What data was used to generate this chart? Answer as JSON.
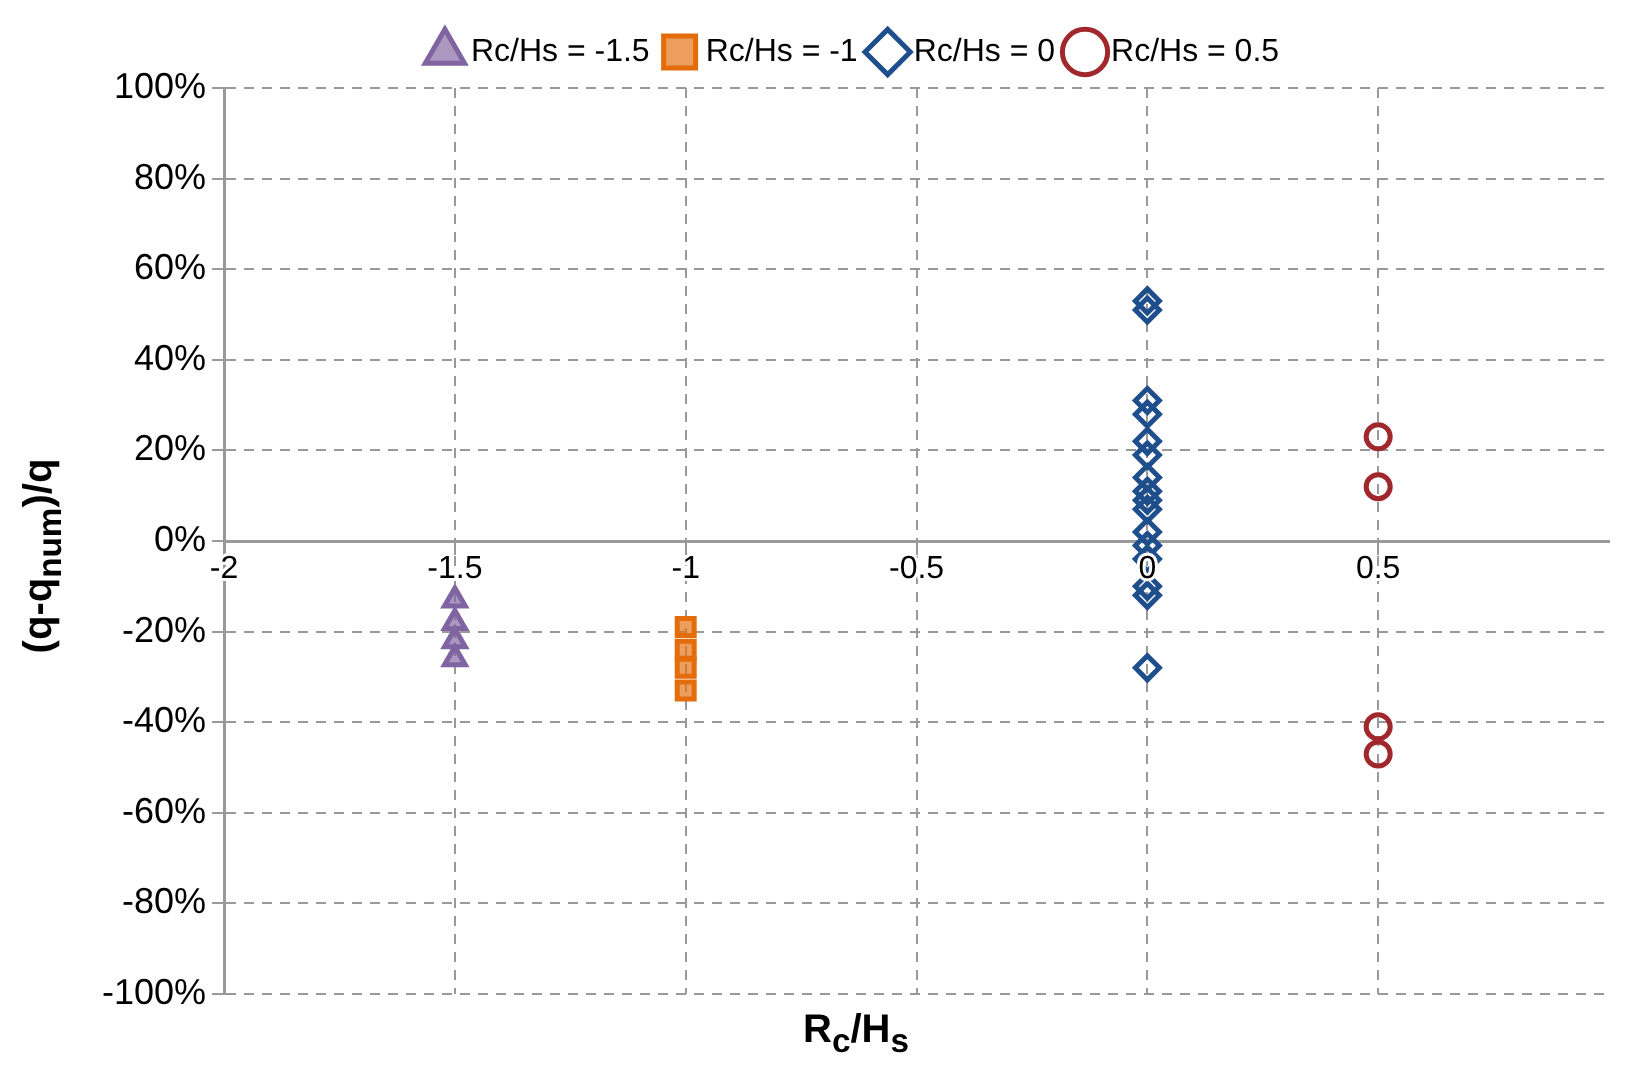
{
  "chart_data": {
    "type": "scatter",
    "xlabel": "R$_{c}$/H$_{s}$",
    "ylabel": "(q-q$_{num}$)/q",
    "xlim": [
      -2,
      1
    ],
    "xticks": [
      -2,
      -1.5,
      -1,
      -0.5,
      0,
      0.5
    ],
    "ylim": [
      -100,
      100
    ],
    "yticks": [
      {
        "value": -100,
        "label": "-100%"
      },
      {
        "value": -80,
        "label": "-80%"
      },
      {
        "value": -60,
        "label": "-60%"
      },
      {
        "value": -40,
        "label": "-40%"
      },
      {
        "value": -20,
        "label": "-20%"
      },
      {
        "value": 0,
        "label": "0%"
      },
      {
        "value": 20,
        "label": "20%"
      },
      {
        "value": 40,
        "label": "40%"
      },
      {
        "value": 60,
        "label": "60%"
      },
      {
        "value": 80,
        "label": "80%"
      },
      {
        "value": 100,
        "label": "100%"
      }
    ],
    "grid": true,
    "legend": "top",
    "series": [
      {
        "name": "Rc/Hs = -1.5",
        "color": "#8064a2",
        "marker": "triangle",
        "x": [
          -1.5,
          -1.5,
          -1.5,
          -1.5
        ],
        "values": [
          -13,
          -18,
          -22,
          -26
        ]
      },
      {
        "name": "Rc/Hs = -1",
        "color": "#e46c0a",
        "marker": "square",
        "x": [
          -1,
          -1,
          -1,
          -1
        ],
        "values": [
          -19,
          -24,
          -28,
          -33
        ]
      },
      {
        "name": "Rc/Hs = 0",
        "color": "#1f4e8c",
        "marker": "diamond",
        "x": [
          0,
          0,
          0,
          0,
          0,
          0,
          0,
          0,
          0,
          0,
          0,
          0,
          0,
          0,
          0,
          0
        ],
        "values": [
          53,
          51,
          31,
          28,
          22,
          19,
          14,
          11,
          9,
          7,
          2,
          -1,
          -4,
          -10,
          -12,
          -28
        ]
      },
      {
        "name": "Rc/Hs = 0.5",
        "color": "#a0282c",
        "marker": "circle",
        "x": [
          0.5,
          0.5,
          0.5,
          0.5
        ],
        "values": [
          23,
          12,
          -41,
          -47
        ]
      }
    ]
  }
}
